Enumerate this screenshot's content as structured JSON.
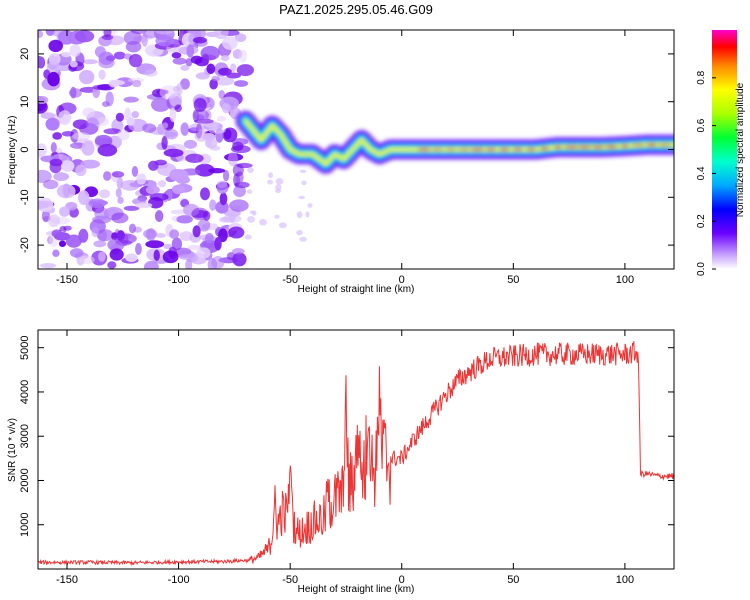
{
  "title": "PAZ1.2025.295.05.46.G09",
  "chart_data": [
    {
      "type": "heatmap",
      "title": "PAZ1.2025.295.05.46.G09",
      "xlabel": "Height of straight line (km)",
      "ylabel": "Frequency (Hz)",
      "xlim": [
        -163,
        122
      ],
      "ylim": [
        -25,
        25
      ],
      "xticks": [
        -150,
        -100,
        -50,
        0,
        50,
        100
      ],
      "yticks": [
        -20,
        -10,
        0,
        10,
        20
      ],
      "colorbar": {
        "label": "Normalized spectral amplitude",
        "range": [
          0,
          1
        ],
        "ticks": [
          0.0,
          0.2,
          0.4,
          0.6,
          0.8
        ],
        "tick_labels": [
          "0.0",
          "0.2",
          "0.4",
          "0.6",
          "0.8"
        ],
        "colormap": "rainbow"
      },
      "noise_region": {
        "x_range": [
          -163,
          -70
        ],
        "freq_range": [
          -25,
          25
        ],
        "amplitude": "low (0.0-0.2)"
      },
      "signal_track": {
        "x": [
          -70,
          -63,
          -58,
          -54,
          -50,
          -46,
          -40,
          -34,
          -30,
          -26,
          -22,
          -18,
          -14,
          -10,
          -5,
          0,
          10,
          20,
          30,
          40,
          50,
          60,
          70,
          80,
          90,
          100,
          110,
          122
        ],
        "frequency": [
          6,
          2,
          5,
          3,
          0,
          -1,
          -1,
          -3,
          -1,
          -2,
          0,
          2,
          0,
          -1,
          0,
          0,
          0,
          0,
          0,
          0,
          0,
          0,
          0.5,
          0.5,
          0.5,
          0.7,
          1,
          1
        ]
      }
    },
    {
      "type": "line",
      "xlabel": "Height of straight line (km)",
      "ylabel": "SNR (10 * v/v)",
      "xlim": [
        -163,
        122
      ],
      "ylim": [
        0,
        5400
      ],
      "xticks": [
        -150,
        -100,
        -50,
        0,
        50,
        100
      ],
      "yticks": [
        1000,
        2000,
        3000,
        4000,
        5000
      ],
      "series": [
        {
          "name": "SNR",
          "color": "#ee3333",
          "x": [
            -163,
            -140,
            -120,
            -100,
            -80,
            -68,
            -64,
            -60,
            -56,
            -54,
            -50,
            -46,
            -40,
            -35,
            -30,
            -26,
            -22,
            -18,
            -14,
            -10,
            -6,
            0,
            5,
            10,
            15,
            20,
            25,
            30,
            35,
            40,
            50,
            60,
            70,
            80,
            90,
            100,
            106,
            107,
            110,
            115,
            122
          ],
          "y": [
            150,
            150,
            140,
            160,
            170,
            200,
            260,
            450,
            900,
            1300,
            1150,
            800,
            1050,
            1150,
            1550,
            1750,
            1900,
            2300,
            2200,
            2550,
            2500,
            2500,
            2900,
            3250,
            3600,
            3950,
            4250,
            4450,
            4600,
            4750,
            4800,
            4850,
            4850,
            4850,
            4850,
            4850,
            4900,
            2150,
            2150,
            2100,
            2100
          ]
        }
      ],
      "spikes": [
        {
          "x": -57,
          "y": 1750
        },
        {
          "x": -50,
          "y": 2600
        },
        {
          "x": -33,
          "y": 2000
        },
        {
          "x": -25,
          "y": 4300
        },
        {
          "x": -20,
          "y": 3200
        },
        {
          "x": -15,
          "y": 4500
        },
        {
          "x": -10,
          "y": 4750
        }
      ]
    }
  ]
}
